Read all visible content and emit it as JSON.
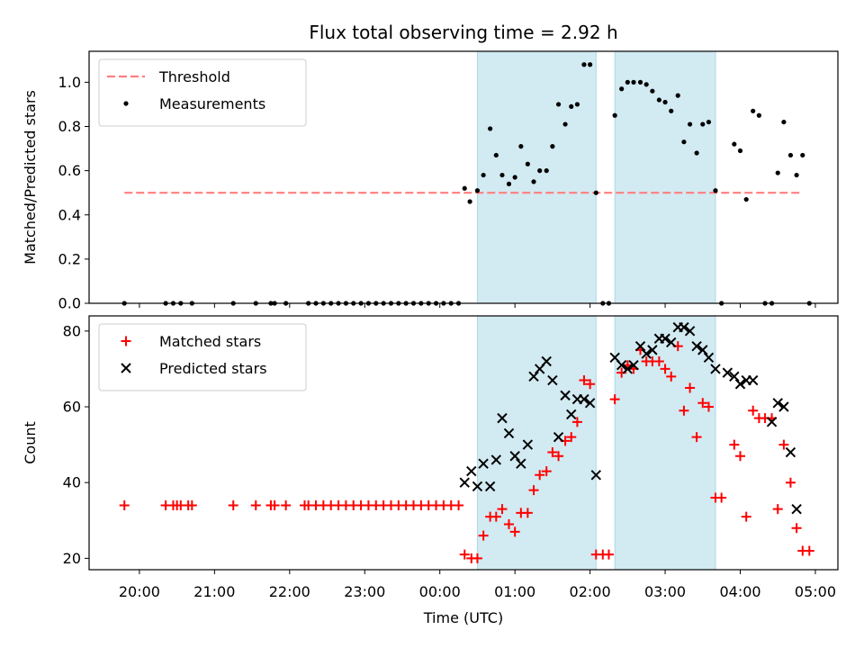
{
  "chart_data": {
    "type": "scatter",
    "title": "Flux total observing time = 2.92 h",
    "xlabel": "Time (UTC)",
    "x_ticks": [
      "20:00",
      "21:00",
      "22:00",
      "23:00",
      "00:00",
      "01:00",
      "02:00",
      "03:00",
      "04:00",
      "05:00"
    ],
    "xlim_hours": [
      19.33,
      29.3
    ],
    "shaded_intervals_hours": [
      [
        24.5,
        26.08
      ],
      [
        26.33,
        27.67
      ]
    ],
    "shade_color": "#add8e6",
    "panels": [
      {
        "ylabel": "Matched/Predicted stars",
        "ylim": [
          0,
          1.14
        ],
        "y_ticks": [
          "0.0",
          "0.2",
          "0.4",
          "0.6",
          "0.8",
          "1.0"
        ],
        "legend_position": "top-left",
        "threshold": {
          "name": "Threshold",
          "value": 0.5,
          "x_range": [
            19.8,
            28.83
          ],
          "color": "#ff7f7f"
        },
        "series": [
          {
            "name": "Measurements",
            "marker": "dot",
            "color": "#000000",
            "points": [
              [
                19.8,
                0
              ],
              [
                20.35,
                0
              ],
              [
                20.45,
                0
              ],
              [
                20.55,
                0
              ],
              [
                20.7,
                0
              ],
              [
                21.25,
                0
              ],
              [
                21.55,
                0
              ],
              [
                21.75,
                0
              ],
              [
                21.8,
                0
              ],
              [
                21.95,
                0
              ],
              [
                22.25,
                0
              ],
              [
                22.35,
                0
              ],
              [
                22.45,
                0
              ],
              [
                22.55,
                0
              ],
              [
                22.65,
                0
              ],
              [
                22.75,
                0
              ],
              [
                22.85,
                0
              ],
              [
                22.95,
                0
              ],
              [
                23.05,
                0
              ],
              [
                23.15,
                0
              ],
              [
                23.25,
                0
              ],
              [
                23.35,
                0
              ],
              [
                23.45,
                0
              ],
              [
                23.55,
                0
              ],
              [
                23.65,
                0
              ],
              [
                23.75,
                0
              ],
              [
                23.85,
                0
              ],
              [
                23.95,
                0
              ],
              [
                24.05,
                0
              ],
              [
                24.15,
                0
              ],
              [
                24.25,
                0
              ],
              [
                24.33,
                0.52
              ],
              [
                24.4,
                0.46
              ],
              [
                24.5,
                0.51
              ],
              [
                24.58,
                0.58
              ],
              [
                24.67,
                0.79
              ],
              [
                24.75,
                0.67
              ],
              [
                24.83,
                0.58
              ],
              [
                24.92,
                0.54
              ],
              [
                25.0,
                0.57
              ],
              [
                25.08,
                0.71
              ],
              [
                25.17,
                0.63
              ],
              [
                25.25,
                0.55
              ],
              [
                25.33,
                0.6
              ],
              [
                25.42,
                0.6
              ],
              [
                25.5,
                0.71
              ],
              [
                25.58,
                0.9
              ],
              [
                25.67,
                0.81
              ],
              [
                25.75,
                0.89
              ],
              [
                25.83,
                0.9
              ],
              [
                25.92,
                1.08
              ],
              [
                26.0,
                1.08
              ],
              [
                26.08,
                0.5
              ],
              [
                26.17,
                0
              ],
              [
                26.25,
                0
              ],
              [
                26.33,
                0.85
              ],
              [
                26.42,
                0.97
              ],
              [
                26.5,
                1.0
              ],
              [
                26.58,
                1.0
              ],
              [
                26.67,
                1.0
              ],
              [
                26.75,
                0.99
              ],
              [
                26.83,
                0.96
              ],
              [
                26.92,
                0.92
              ],
              [
                27.0,
                0.91
              ],
              [
                27.08,
                0.87
              ],
              [
                27.17,
                0.94
              ],
              [
                27.25,
                0.73
              ],
              [
                27.33,
                0.81
              ],
              [
                27.42,
                0.68
              ],
              [
                27.5,
                0.81
              ],
              [
                27.58,
                0.82
              ],
              [
                27.67,
                0.51
              ],
              [
                27.75,
                0
              ],
              [
                27.92,
                0.72
              ],
              [
                28.0,
                0.69
              ],
              [
                28.08,
                0.47
              ],
              [
                28.17,
                0.87
              ],
              [
                28.25,
                0.85
              ],
              [
                28.33,
                0
              ],
              [
                28.42,
                0
              ],
              [
                28.5,
                0.59
              ],
              [
                28.58,
                0.82
              ],
              [
                28.67,
                0.67
              ],
              [
                28.75,
                0.58
              ],
              [
                28.83,
                0.67
              ],
              [
                28.92,
                0
              ]
            ]
          }
        ]
      },
      {
        "ylabel": "Count",
        "ylim": [
          17,
          84
        ],
        "y_ticks": [
          "20",
          "40",
          "60",
          "80"
        ],
        "legend_position": "top-left",
        "series": [
          {
            "name": "Matched stars",
            "marker": "plus",
            "color": "#ff0000",
            "points": [
              [
                19.8,
                34
              ],
              [
                20.35,
                34
              ],
              [
                20.45,
                34
              ],
              [
                20.5,
                34
              ],
              [
                20.55,
                34
              ],
              [
                20.65,
                34
              ],
              [
                20.7,
                34
              ],
              [
                21.25,
                34
              ],
              [
                21.55,
                34
              ],
              [
                21.75,
                34
              ],
              [
                21.8,
                34
              ],
              [
                21.95,
                34
              ],
              [
                22.2,
                34
              ],
              [
                22.25,
                34
              ],
              [
                22.35,
                34
              ],
              [
                22.45,
                34
              ],
              [
                22.55,
                34
              ],
              [
                22.65,
                34
              ],
              [
                22.75,
                34
              ],
              [
                22.85,
                34
              ],
              [
                22.95,
                34
              ],
              [
                23.05,
                34
              ],
              [
                23.15,
                34
              ],
              [
                23.25,
                34
              ],
              [
                23.35,
                34
              ],
              [
                23.45,
                34
              ],
              [
                23.55,
                34
              ],
              [
                23.65,
                34
              ],
              [
                23.75,
                34
              ],
              [
                23.85,
                34
              ],
              [
                23.95,
                34
              ],
              [
                24.05,
                34
              ],
              [
                24.15,
                34
              ],
              [
                24.25,
                34
              ],
              [
                24.33,
                21
              ],
              [
                24.42,
                20
              ],
              [
                24.5,
                20
              ],
              [
                24.58,
                26
              ],
              [
                24.67,
                31
              ],
              [
                24.75,
                31
              ],
              [
                24.83,
                33
              ],
              [
                24.92,
                29
              ],
              [
                25.0,
                27
              ],
              [
                25.08,
                32
              ],
              [
                25.17,
                32
              ],
              [
                25.25,
                38
              ],
              [
                25.33,
                42
              ],
              [
                25.42,
                43
              ],
              [
                25.5,
                48
              ],
              [
                25.58,
                47
              ],
              [
                25.67,
                51
              ],
              [
                25.75,
                52
              ],
              [
                25.83,
                56
              ],
              [
                25.92,
                67
              ],
              [
                26.0,
                66
              ],
              [
                26.08,
                21
              ],
              [
                26.17,
                21
              ],
              [
                26.25,
                21
              ],
              [
                26.33,
                62
              ],
              [
                26.42,
                69
              ],
              [
                26.5,
                71
              ],
              [
                26.58,
                70
              ],
              [
                26.67,
                75
              ],
              [
                26.75,
                72
              ],
              [
                26.83,
                72
              ],
              [
                26.92,
                72
              ],
              [
                27.0,
                70
              ],
              [
                27.08,
                68
              ],
              [
                27.17,
                76
              ],
              [
                27.25,
                59
              ],
              [
                27.33,
                65
              ],
              [
                27.42,
                52
              ],
              [
                27.5,
                61
              ],
              [
                27.58,
                60
              ],
              [
                27.67,
                36
              ],
              [
                27.75,
                36
              ],
              [
                27.92,
                50
              ],
              [
                28.0,
                47
              ],
              [
                28.08,
                31
              ],
              [
                28.17,
                59
              ],
              [
                28.25,
                57
              ],
              [
                28.33,
                57
              ],
              [
                28.42,
                57
              ],
              [
                28.5,
                33
              ],
              [
                28.58,
                50
              ],
              [
                28.67,
                40
              ],
              [
                28.75,
                28
              ],
              [
                28.83,
                22
              ],
              [
                28.92,
                22
              ]
            ]
          },
          {
            "name": "Predicted stars",
            "marker": "x",
            "color": "#000000",
            "points": [
              [
                24.33,
                40
              ],
              [
                24.42,
                43
              ],
              [
                24.5,
                39
              ],
              [
                24.58,
                45
              ],
              [
                24.67,
                39
              ],
              [
                24.75,
                46
              ],
              [
                24.83,
                57
              ],
              [
                24.92,
                53
              ],
              [
                25.0,
                47
              ],
              [
                25.08,
                45
              ],
              [
                25.17,
                50
              ],
              [
                25.25,
                68
              ],
              [
                25.33,
                70
              ],
              [
                25.42,
                72
              ],
              [
                25.5,
                67
              ],
              [
                25.58,
                52
              ],
              [
                25.67,
                63
              ],
              [
                25.75,
                58
              ],
              [
                25.83,
                62
              ],
              [
                25.92,
                62
              ],
              [
                26.0,
                61
              ],
              [
                26.08,
                42
              ],
              [
                26.33,
                73
              ],
              [
                26.42,
                71
              ],
              [
                26.5,
                70
              ],
              [
                26.58,
                71
              ],
              [
                26.67,
                76
              ],
              [
                26.75,
                74
              ],
              [
                26.83,
                75
              ],
              [
                26.92,
                78
              ],
              [
                27.0,
                78
              ],
              [
                27.08,
                77
              ],
              [
                27.17,
                81
              ],
              [
                27.25,
                81
              ],
              [
                27.33,
                80
              ],
              [
                27.42,
                76
              ],
              [
                27.5,
                75
              ],
              [
                27.58,
                73
              ],
              [
                27.67,
                70
              ],
              [
                27.83,
                69
              ],
              [
                27.92,
                68
              ],
              [
                28.0,
                66
              ],
              [
                28.08,
                67
              ],
              [
                28.17,
                67
              ],
              [
                28.42,
                56
              ],
              [
                28.5,
                61
              ],
              [
                28.58,
                60
              ],
              [
                28.67,
                48
              ],
              [
                28.75,
                33
              ]
            ]
          }
        ]
      }
    ]
  }
}
